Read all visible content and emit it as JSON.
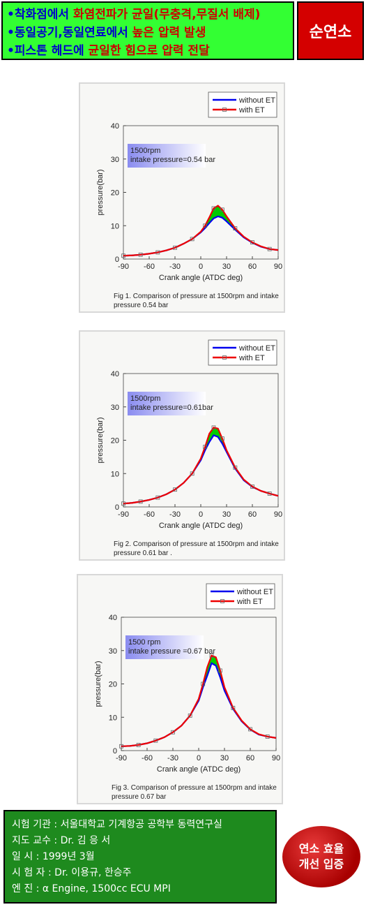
{
  "header": {
    "lines": [
      [
        {
          "text": "•착화점에서 ",
          "color": "#0000cc"
        },
        {
          "text": "화염전파가 균일(무충격,무질서 배제)",
          "color": "#cc0000"
        }
      ],
      [
        {
          "text": "•동일공기,동일연료에서 ",
          "color": "#0000cc"
        },
        {
          "text": "높은 압력 발생",
          "color": "#cc0000"
        }
      ],
      [
        {
          "text": "•피스톤 헤드에 ",
          "color": "#0000cc"
        },
        {
          "text": "균일한 힘으로 압력 전달",
          "color": "#cc0000"
        }
      ]
    ],
    "badge": "순연소"
  },
  "chart_data": [
    {
      "type": "line",
      "caption": "Fig 1. Comparison of pressure at 1500rpm and intake pressure 0.54 bar",
      "annotation": [
        "1500rpm",
        "intake pressure=0.54 bar"
      ],
      "xlabel": "Crank angle (ATDC deg)",
      "ylabel": "pressure(bar)",
      "x": [
        -90,
        -80,
        -70,
        -60,
        -50,
        -40,
        -30,
        -20,
        -10,
        0,
        5,
        10,
        15,
        20,
        25,
        30,
        40,
        50,
        60,
        70,
        80,
        90
      ],
      "series": [
        {
          "name": "without ET",
          "color": "#0000ee",
          "values": [
            1,
            1.1,
            1.3,
            1.6,
            2.0,
            2.6,
            3.4,
            4.6,
            6.0,
            8.0,
            9.3,
            10.8,
            12.2,
            12.8,
            12.4,
            11.3,
            8.8,
            6.5,
            4.9,
            3.7,
            3.0,
            2.7
          ]
        },
        {
          "name": "with ET",
          "color": "#ee0000",
          "values": [
            1,
            1.1,
            1.3,
            1.6,
            2.0,
            2.6,
            3.4,
            4.6,
            6.0,
            8.2,
            10.0,
            12.5,
            15.2,
            16.0,
            14.8,
            12.8,
            9.2,
            6.7,
            5.0,
            3.8,
            3.0,
            2.7
          ]
        }
      ],
      "fill_between": "#00cc00",
      "xlim": [
        -90,
        90
      ],
      "ylim": [
        0,
        40
      ],
      "xticks": [
        -90,
        -60,
        -30,
        0,
        30,
        60,
        90
      ],
      "yticks": [
        0,
        10,
        20,
        30,
        40
      ]
    },
    {
      "type": "line",
      "caption": "Fig 2. Comparison of pressure at 1500rpm and intake pressure 0.61 bar .",
      "annotation": [
        "1500rpm",
        "intake pressure=0.61bar"
      ],
      "xlabel": "Crank angle (ATDC deg)",
      "ylabel": "pressure(bar)",
      "x": [
        -90,
        -80,
        -70,
        -60,
        -50,
        -40,
        -30,
        -20,
        -10,
        0,
        5,
        10,
        15,
        20,
        25,
        30,
        40,
        50,
        60,
        70,
        80,
        90
      ],
      "series": [
        {
          "name": "without ET",
          "color": "#0000ee",
          "values": [
            1,
            1.2,
            1.6,
            2.1,
            2.8,
            3.8,
            5.2,
            7.2,
            10,
            14,
            17,
            19.5,
            21.5,
            21,
            19,
            16.5,
            11.5,
            8.0,
            6.0,
            4.8,
            4.0,
            3.3
          ]
        },
        {
          "name": "with ET",
          "color": "#ee0000",
          "values": [
            1,
            1.2,
            1.6,
            2.1,
            2.8,
            3.8,
            5.2,
            7.2,
            10,
            14.5,
            18,
            22,
            23.8,
            23.5,
            20.5,
            17,
            11.8,
            8.2,
            6.1,
            4.8,
            4.0,
            3.3
          ]
        }
      ],
      "fill_between": "#00cc00",
      "xlim": [
        -90,
        90
      ],
      "ylim": [
        0,
        40
      ],
      "xticks": [
        -90,
        -60,
        -30,
        0,
        30,
        60,
        90
      ],
      "yticks": [
        0,
        10,
        20,
        30,
        40
      ]
    },
    {
      "type": "line",
      "caption": "Fig 3. Comparison of pressure  at 1500rpm and intake pressure 0.67 bar",
      "annotation": [
        "1500 rpm",
        "intake pressure =0.67 bar"
      ],
      "xlabel": "Crank angle (ATDC deg)",
      "ylabel": "pressure(bar)",
      "x": [
        -90,
        -80,
        -70,
        -60,
        -50,
        -40,
        -30,
        -20,
        -10,
        0,
        5,
        10,
        15,
        20,
        25,
        30,
        40,
        50,
        60,
        70,
        80,
        90
      ],
      "series": [
        {
          "name": "without ET",
          "color": "#0000ee",
          "values": [
            1.3,
            1.4,
            1.7,
            2.2,
            3.0,
            4.0,
            5.5,
            7.5,
            10.5,
            15,
            19,
            22.5,
            26.2,
            25.5,
            22,
            18,
            12.5,
            8.8,
            6.3,
            4.8,
            4.2,
            3.8
          ]
        },
        {
          "name": "with ET",
          "color": "#ee0000",
          "values": [
            1.3,
            1.4,
            1.7,
            2.2,
            3.0,
            4.0,
            5.5,
            7.5,
            10.5,
            15.5,
            20,
            25,
            28.5,
            28,
            24,
            19,
            12.8,
            9,
            6.4,
            4.9,
            4.2,
            3.8
          ]
        }
      ],
      "fill_between": "#00cc00",
      "xlim": [
        -90,
        90
      ],
      "ylim": [
        0,
        40
      ],
      "xticks": [
        -90,
        -60,
        -30,
        0,
        30,
        60,
        90
      ],
      "yticks": [
        0,
        10,
        20,
        30,
        40
      ]
    }
  ],
  "footer": {
    "lines": [
      "시험 기관 :  서울대학교  기계항공 공학부  동력연구실",
      "지도 교수 :  Dr. 김 응 서",
      "일       시 :  1999년 3월",
      "시  험  자 :   Dr. 이용규,  한승주",
      "엔       진 :   α Engine, 1500cc ECU MPI"
    ],
    "badge": [
      "연소 효율",
      "개선 입증"
    ]
  }
}
